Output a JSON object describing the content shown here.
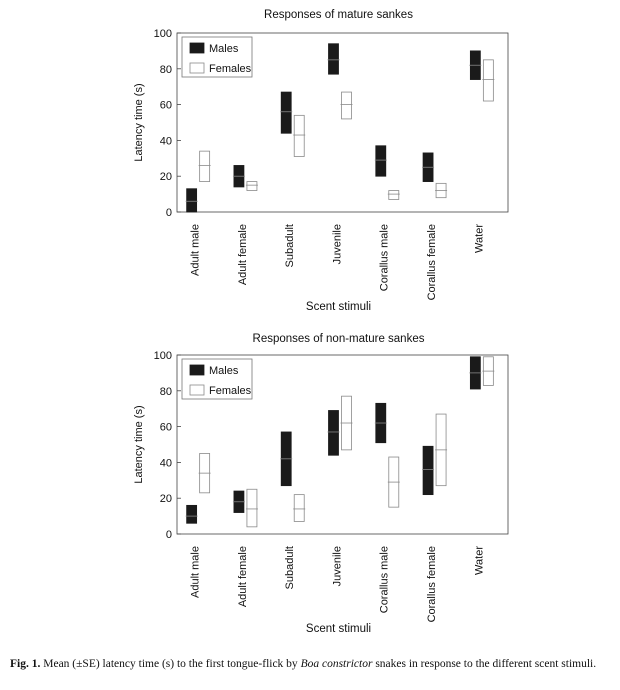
{
  "chart_data": [
    {
      "type": "box",
      "title": "Responses of mature sankes",
      "xlabel": "Scent stimuli",
      "ylabel": "Latency time (s)",
      "ylim": [
        0,
        100
      ],
      "yticks": [
        0,
        20,
        40,
        60,
        80,
        100
      ],
      "categories": [
        "Adult male",
        "Adult female",
        "Subadult",
        "Juvenile",
        "Corallus male",
        "Corallus female",
        "Water"
      ],
      "legend": {
        "position": "top-left"
      },
      "series": [
        {
          "name": "Males",
          "color": "#1a1a1a",
          "mean": [
            6,
            20,
            56,
            85,
            29,
            25,
            82
          ],
          "lower": [
            0,
            14,
            44,
            77,
            20,
            17,
            74
          ],
          "upper": [
            13,
            26,
            67,
            94,
            37,
            33,
            90
          ]
        },
        {
          "name": "Females",
          "color": "#ffffff",
          "mean": [
            26,
            15,
            43,
            60,
            10,
            12,
            74
          ],
          "lower": [
            17,
            12,
            31,
            52,
            7,
            8,
            62
          ],
          "upper": [
            34,
            17,
            54,
            67,
            12,
            16,
            85
          ]
        }
      ]
    },
    {
      "type": "box",
      "title": "Responses of non-mature sankes",
      "xlabel": "Scent stimuli",
      "ylabel": "Latency time (s)",
      "ylim": [
        0,
        100
      ],
      "yticks": [
        0,
        20,
        40,
        60,
        80,
        100
      ],
      "categories": [
        "Adult male",
        "Adult female",
        "Subadult",
        "Juvenile",
        "Corallus male",
        "Corallus female",
        "Water"
      ],
      "legend": {
        "position": "top-left"
      },
      "series": [
        {
          "name": "Males",
          "color": "#1a1a1a",
          "mean": [
            10,
            18,
            42,
            57,
            62,
            36,
            90
          ],
          "lower": [
            6,
            12,
            27,
            44,
            51,
            22,
            81
          ],
          "upper": [
            16,
            24,
            57,
            69,
            73,
            49,
            99
          ]
        },
        {
          "name": "Females",
          "color": "#ffffff",
          "mean": [
            34,
            14,
            14,
            62,
            29,
            47,
            91
          ],
          "lower": [
            23,
            4,
            7,
            47,
            15,
            27,
            83
          ],
          "upper": [
            45,
            25,
            22,
            77,
            43,
            67,
            99
          ]
        }
      ]
    }
  ],
  "caption": {
    "label": "Fig. 1.",
    "text_before": " Mean (±SE) latency time (s) to the first tongue-flick by ",
    "species": "Boa constrictor",
    "text_after": " snakes in response to the different scent stimuli."
  }
}
